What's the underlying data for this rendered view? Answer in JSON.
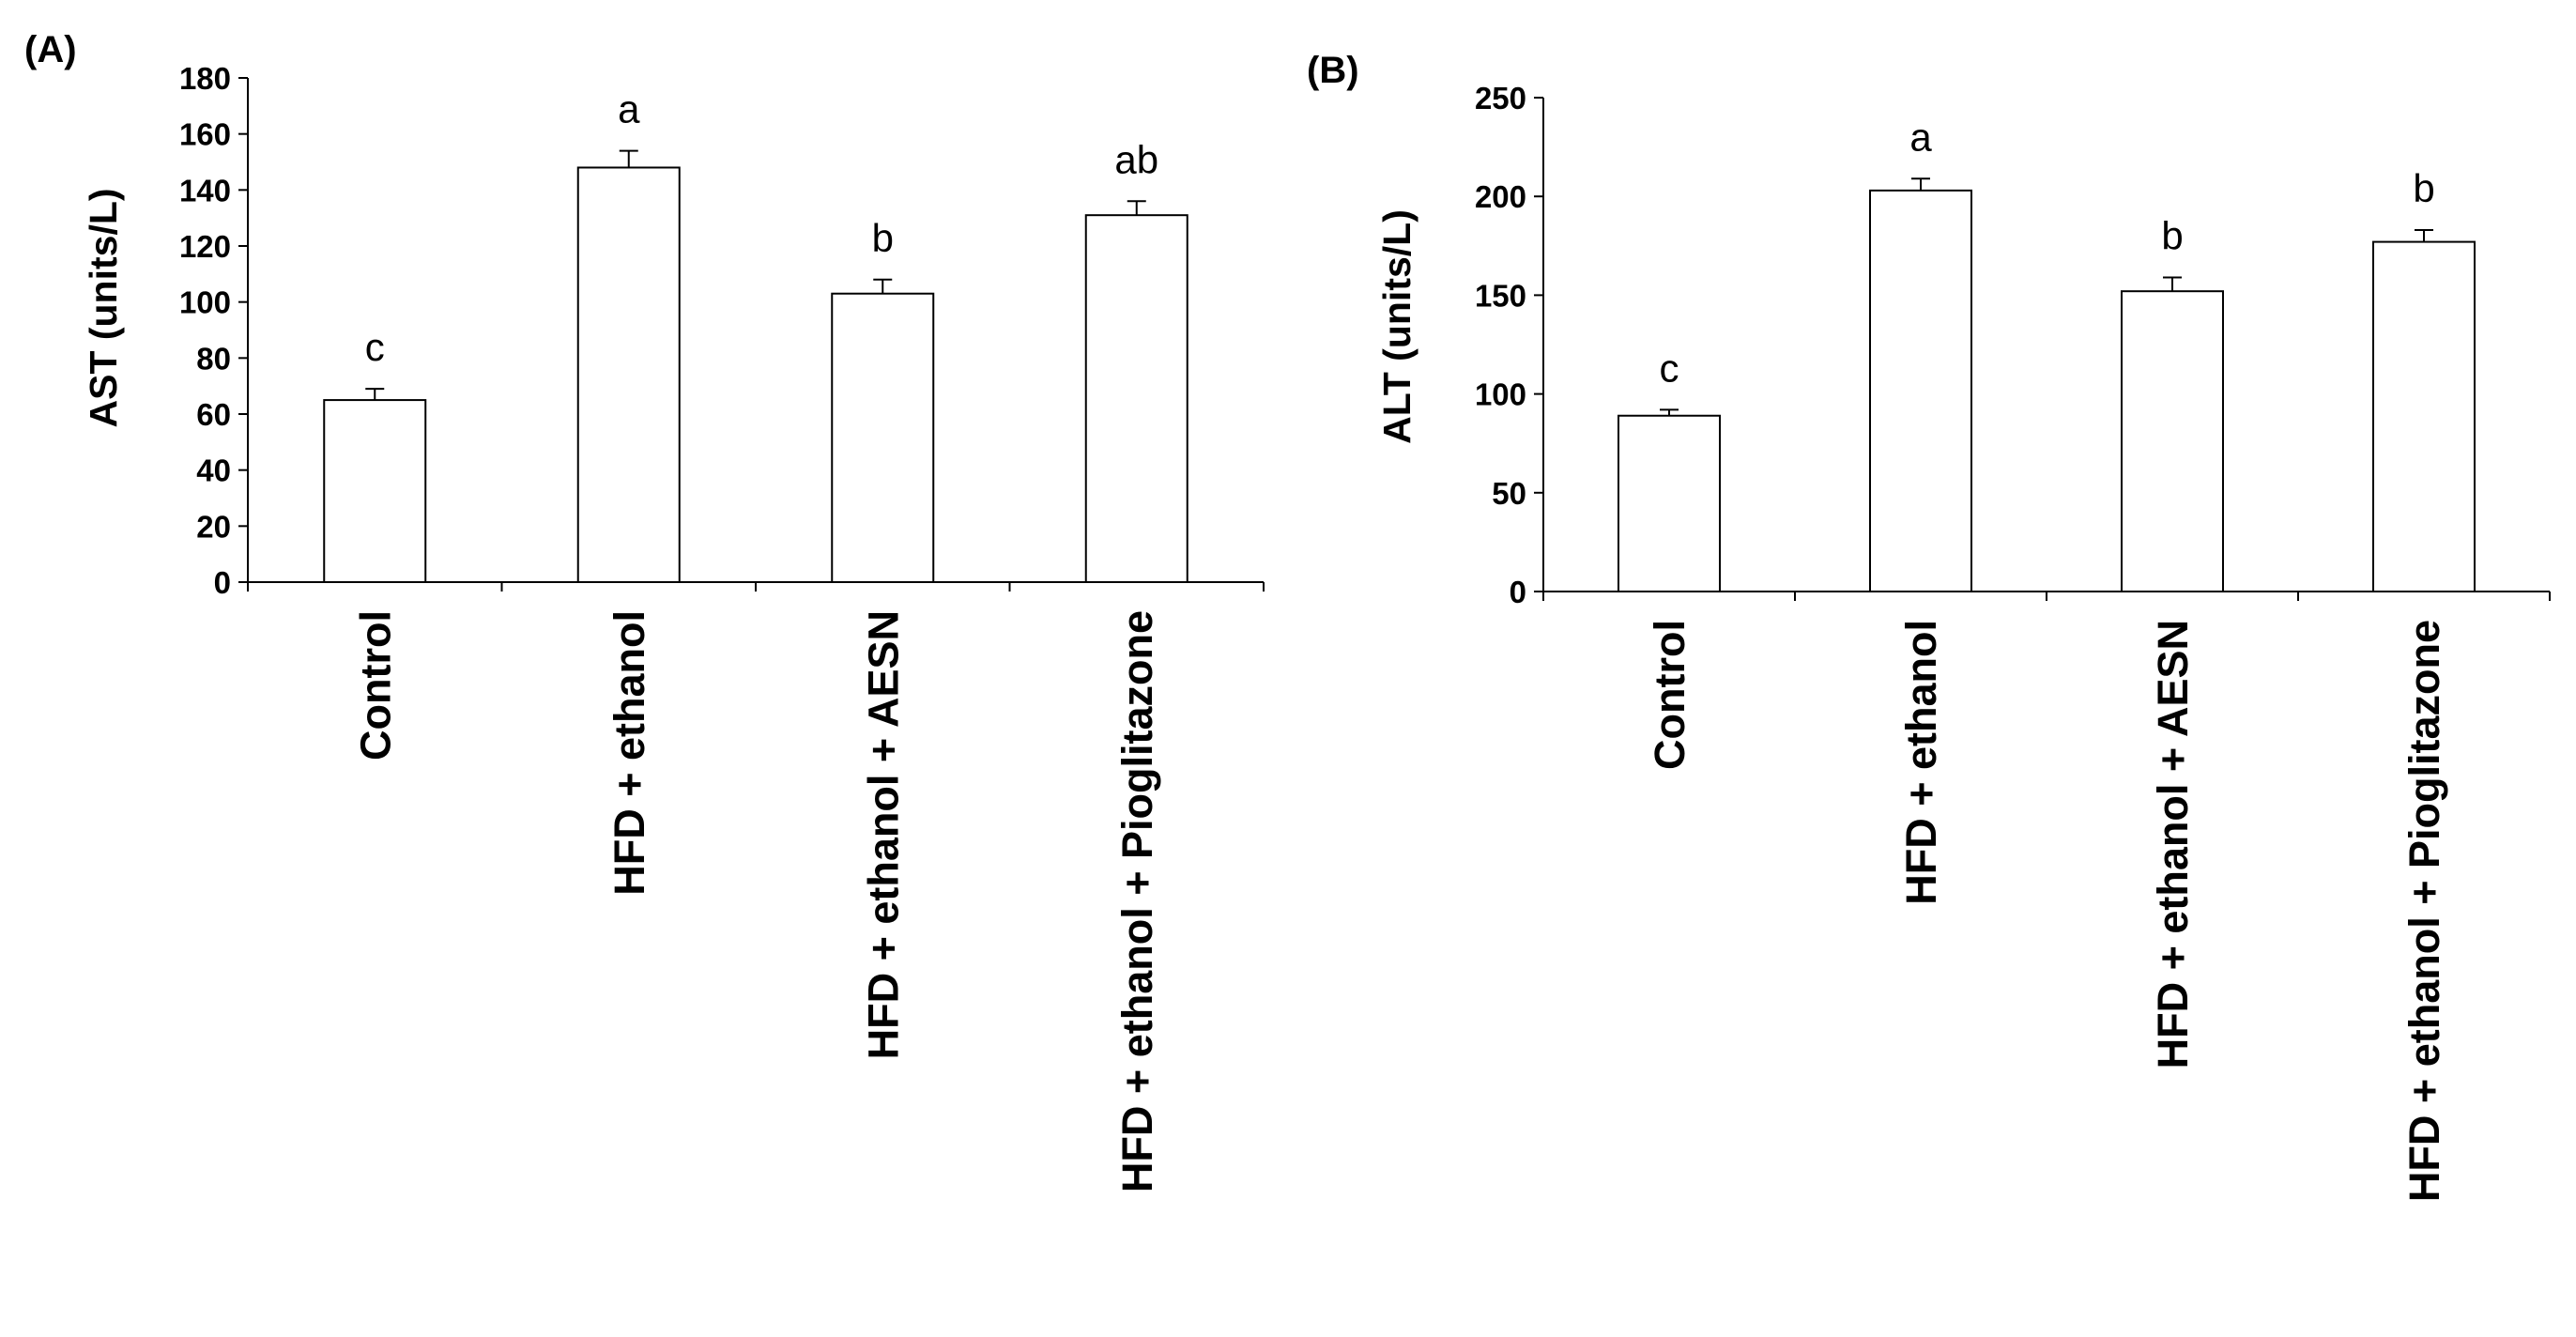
{
  "chart_data": [
    {
      "type": "bar",
      "panel_label": "(A)",
      "title": "",
      "xlabel": "",
      "ylabel": "AST (units/L)",
      "ylim": [
        0,
        180
      ],
      "yticks": [
        0,
        20,
        40,
        60,
        80,
        100,
        120,
        140,
        160,
        180
      ],
      "categories": [
        "Control",
        "HFD + ethanol",
        "HFD + ethanol + AESN",
        "HFD + ethanol + Pioglitazone"
      ],
      "values": [
        65,
        148,
        103,
        131
      ],
      "errors": [
        4,
        6,
        5,
        5
      ],
      "significance": [
        "c",
        "a",
        "b",
        "ab"
      ],
      "bar_color": "#ffffff",
      "grid": false,
      "legend": "none"
    },
    {
      "type": "bar",
      "panel_label": "(B)",
      "title": "",
      "xlabel": "",
      "ylabel": "ALT (units/L)",
      "ylim": [
        0,
        250
      ],
      "yticks": [
        0,
        50,
        100,
        150,
        200,
        250
      ],
      "categories": [
        "Control",
        "HFD + ethanol",
        "HFD + ethanol + AESN",
        "HFD + ethanol + Pioglitazone"
      ],
      "values": [
        89,
        203,
        152,
        177
      ],
      "errors": [
        3,
        6,
        7,
        6
      ],
      "significance": [
        "c",
        "a",
        "b",
        "b"
      ],
      "bar_color": "#ffffff",
      "grid": false,
      "legend": "none"
    }
  ]
}
